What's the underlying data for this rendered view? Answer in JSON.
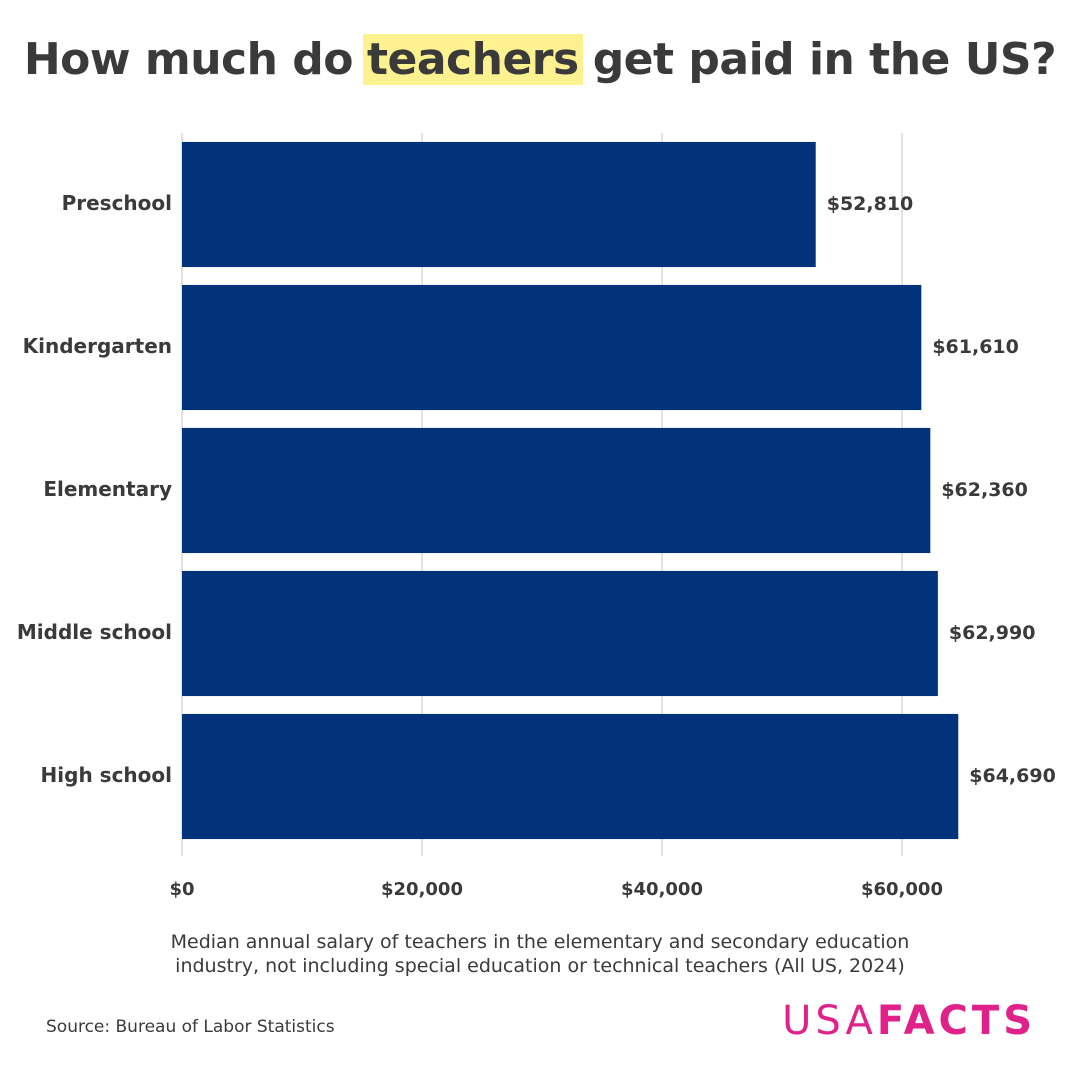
{
  "chart_data": {
    "type": "bar",
    "orientation": "horizontal",
    "title_parts": [
      "How much do",
      "teachers",
      "get paid in the US?"
    ],
    "title_highlight": 1,
    "categories": [
      "Preschool",
      "Kindergarten",
      "Elementary",
      "Middle school",
      "High school"
    ],
    "values": [
      52810,
      61610,
      62360,
      62990,
      64690
    ],
    "value_labels": [
      "$52,810",
      "$61,610",
      "$62,360",
      "$62,990",
      "$64,690"
    ],
    "color": "#02337a",
    "xlim": [
      0,
      65000
    ],
    "xticks": [
      {
        "value": 0,
        "label": "$0"
      },
      {
        "value": 20000,
        "label": "$20,000"
      },
      {
        "value": 40000,
        "label": "$40,000"
      },
      {
        "value": 60000,
        "label": "$60,000"
      }
    ],
    "grid": true,
    "caption_lines": [
      "Median annual salary of teachers in the elementary and secondary education",
      "industry, not including special education or technical teachers (All US, 2024)"
    ],
    "source": "Source: Bureau of Labor Statistics",
    "logo": [
      "USA",
      "FACTS"
    ]
  }
}
